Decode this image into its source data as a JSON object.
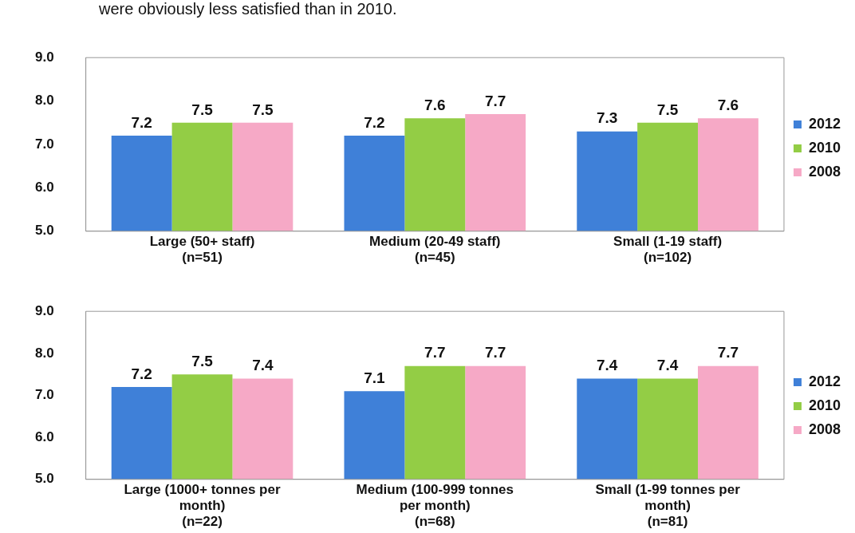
{
  "chart_data": [
    {
      "type": "bar",
      "annotations": [
        "were obviously less satisfied than in 2010."
      ],
      "categories": [
        "Large (50+ staff)\n(n=51)",
        "Medium (20-49 staff)\n(n=45)",
        "Small (1-19 staff)\n(n=102)"
      ],
      "series": [
        {
          "name": "2012",
          "color": "#3f80d8",
          "values": [
            7.2,
            7.2,
            7.3
          ]
        },
        {
          "name": "2010",
          "color": "#93cd45",
          "values": [
            7.5,
            7.6,
            7.5
          ]
        },
        {
          "name": "2008",
          "color": "#f6a9c6",
          "values": [
            7.5,
            7.7,
            7.6
          ]
        }
      ],
      "ylim": [
        5,
        9
      ],
      "yticks": [
        {
          "value": 5,
          "label": "5.0"
        },
        {
          "value": 6,
          "label": "6.0"
        },
        {
          "value": 7,
          "label": "7.0"
        },
        {
          "value": 8,
          "label": "8.0"
        },
        {
          "value": 9,
          "label": "9.0"
        }
      ],
      "grid": false,
      "legend": "right",
      "data_labels": true
    },
    {
      "type": "bar",
      "categories": [
        "Large (1000+ tonnes per\nmonth)\n(n=22)",
        "Medium (100-999 tonnes\nper month)\n(n=68)",
        "Small (1-99 tonnes per\nmonth)\n(n=81)"
      ],
      "series": [
        {
          "name": "2012",
          "color": "#3f80d8",
          "values": [
            7.2,
            7.1,
            7.4
          ]
        },
        {
          "name": "2010",
          "color": "#93cd45",
          "values": [
            7.5,
            7.7,
            7.4
          ]
        },
        {
          "name": "2008",
          "color": "#f6a9c6",
          "values": [
            7.4,
            7.7,
            7.7
          ]
        }
      ],
      "ylim": [
        5,
        9
      ],
      "yticks": [
        {
          "value": 5,
          "label": "5.0"
        },
        {
          "value": 6,
          "label": "6.0"
        },
        {
          "value": 7,
          "label": "7.0"
        },
        {
          "value": 8,
          "label": "8.0"
        },
        {
          "value": 9,
          "label": "9.0"
        }
      ],
      "grid": false,
      "legend": "right",
      "data_labels": true
    }
  ]
}
